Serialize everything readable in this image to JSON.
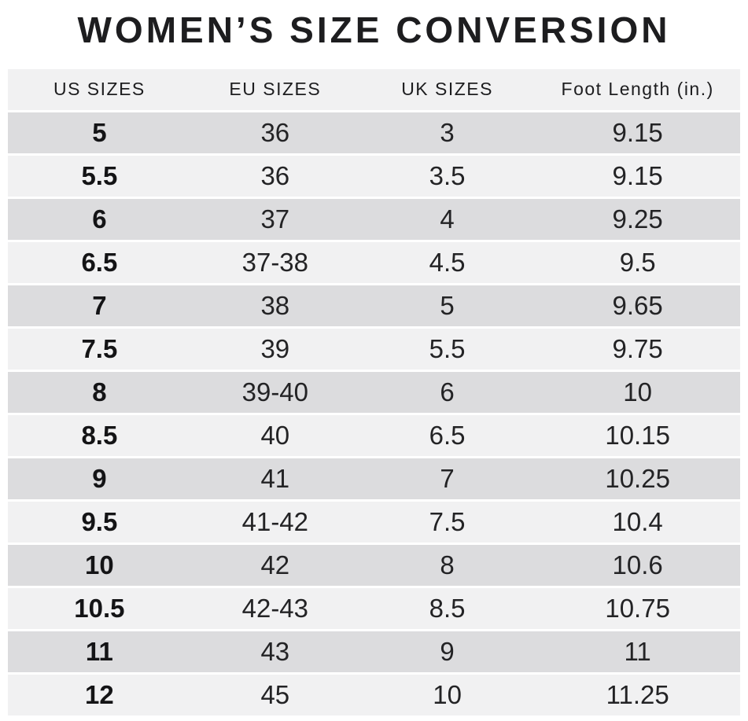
{
  "chart_data": {
    "type": "table",
    "title": "WOMEN’S SIZE CONVERSION",
    "columns": [
      "US SIZES",
      "EU SIZES",
      "UK SIZES",
      "Foot Length (in.)"
    ],
    "rows": [
      [
        "5",
        "36",
        "3",
        "9.15"
      ],
      [
        "5.5",
        "36",
        "3.5",
        "9.15"
      ],
      [
        "6",
        "37",
        "4",
        "9.25"
      ],
      [
        "6.5",
        "37-38",
        "4.5",
        "9.5"
      ],
      [
        "7",
        "38",
        "5",
        "9.65"
      ],
      [
        "7.5",
        "39",
        "5.5",
        "9.75"
      ],
      [
        "8",
        "39-40",
        "6",
        "10"
      ],
      [
        "8.5",
        "40",
        "6.5",
        "10.15"
      ],
      [
        "9",
        "41",
        "7",
        "10.25"
      ],
      [
        "9.5",
        "41-42",
        "7.5",
        "10.4"
      ],
      [
        "10",
        "42",
        "8",
        "10.6"
      ],
      [
        "10.5",
        "42-43",
        "8.5",
        "10.75"
      ],
      [
        "11",
        "43",
        "9",
        "11"
      ],
      [
        "12",
        "45",
        "10",
        "11.25"
      ]
    ],
    "row_shading": "alternating, first data row dark",
    "legend_position": "none",
    "grid": "off"
  },
  "colors": {
    "row_dark": "#dcdcde",
    "row_light": "#f1f1f2",
    "separator": "#ffffff",
    "text": "#1d1d1f"
  }
}
